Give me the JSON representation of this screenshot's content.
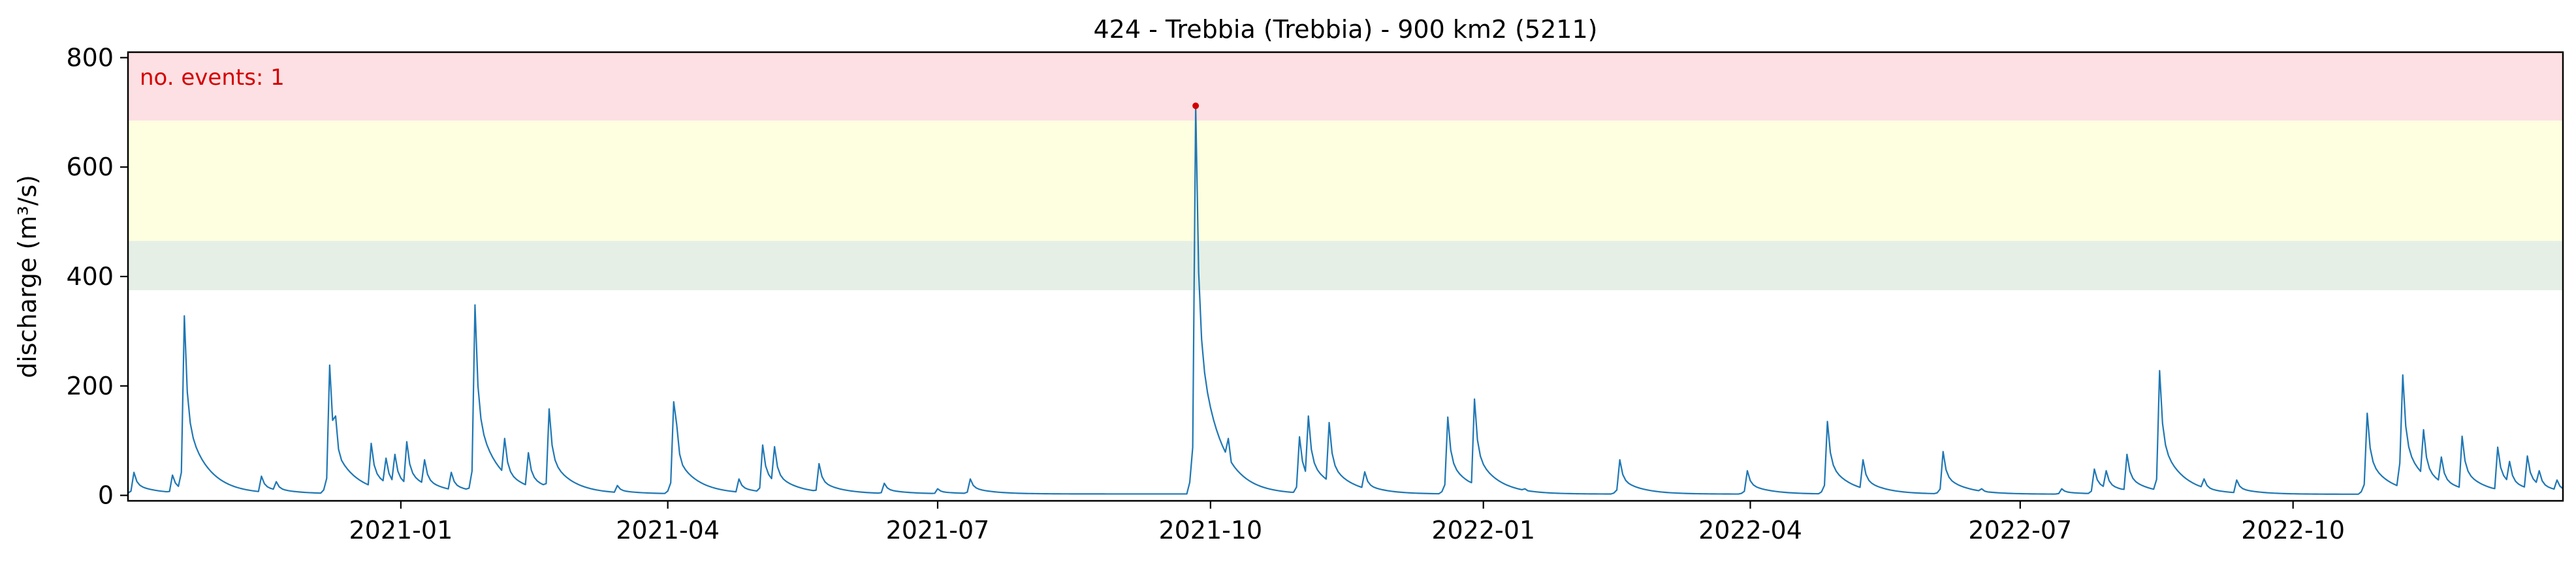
{
  "chart_data": {
    "type": "line",
    "title": "424 - Trebbia (Trebbia) - 900 km2 (5211)",
    "xlabel": "",
    "ylabel": "discharge (m³/s)",
    "xlim": [
      "2020-10-01",
      "2022-12-31"
    ],
    "ylim": [
      -10,
      810
    ],
    "yticks": [
      0,
      200,
      400,
      600,
      800
    ],
    "xticks": [
      "2021-01-01",
      "2021-04-01",
      "2021-07-01",
      "2021-10-01",
      "2022-01-01",
      "2022-04-01",
      "2022-07-01",
      "2022-10-01"
    ],
    "xtick_labels": [
      "2021-01",
      "2021-04",
      "2021-07",
      "2021-10",
      "2022-01",
      "2022-04",
      "2022-07",
      "2022-10"
    ],
    "threshold_bands": [
      {
        "from": 375,
        "to": 465,
        "color": "#e5efe5"
      },
      {
        "from": 465,
        "to": 685,
        "color": "#fefee0"
      },
      {
        "from": 685,
        "to": 810,
        "color": "#fde0e3"
      }
    ],
    "annotation": {
      "text": "no. events: 1",
      "color": "#d40000"
    },
    "event": {
      "x": "2021-09-26",
      "y": 712,
      "color": "#d40000"
    },
    "line_color": "#1f77b4",
    "grid": false,
    "series": [
      {
        "baseline": [
          3,
          2
        ],
        "peaks": [
          {
            "x": "2020-10-03",
            "y": 42
          },
          {
            "x": "2020-10-16",
            "y": 37
          },
          {
            "x": "2020-10-20",
            "y": 328
          },
          {
            "x": "2020-11-15",
            "y": 35
          },
          {
            "x": "2020-11-20",
            "y": 25
          },
          {
            "x": "2020-12-08",
            "y": 238
          },
          {
            "x": "2020-12-10",
            "y": 145
          },
          {
            "x": "2020-12-22",
            "y": 95
          },
          {
            "x": "2020-12-27",
            "y": 68
          },
          {
            "x": "2020-12-30",
            "y": 75
          },
          {
            "x": "2021-01-03",
            "y": 98
          },
          {
            "x": "2021-01-09",
            "y": 65
          },
          {
            "x": "2021-01-18",
            "y": 42
          },
          {
            "x": "2021-01-26",
            "y": 348
          },
          {
            "x": "2021-02-05",
            "y": 104
          },
          {
            "x": "2021-02-13",
            "y": 78
          },
          {
            "x": "2021-02-20",
            "y": 158
          },
          {
            "x": "2021-03-15",
            "y": 18
          },
          {
            "x": "2021-04-03",
            "y": 171
          },
          {
            "x": "2021-04-04",
            "y": 130
          },
          {
            "x": "2021-04-25",
            "y": 30
          },
          {
            "x": "2021-05-03",
            "y": 92
          },
          {
            "x": "2021-05-07",
            "y": 89
          },
          {
            "x": "2021-05-22",
            "y": 58
          },
          {
            "x": "2021-06-13",
            "y": 22
          },
          {
            "x": "2021-07-01",
            "y": 12
          },
          {
            "x": "2021-07-12",
            "y": 30
          },
          {
            "x": "2021-09-26",
            "y": 712
          },
          {
            "x": "2021-10-07",
            "y": 104
          },
          {
            "x": "2021-10-31",
            "y": 107
          },
          {
            "x": "2021-11-03",
            "y": 145
          },
          {
            "x": "2021-11-10",
            "y": 133
          },
          {
            "x": "2021-11-11",
            "y": 72
          },
          {
            "x": "2021-11-22",
            "y": 43
          },
          {
            "x": "2021-12-20",
            "y": 143
          },
          {
            "x": "2021-12-29",
            "y": 176
          },
          {
            "x": "2022-01-15",
            "y": 12
          },
          {
            "x": "2022-02-16",
            "y": 65
          },
          {
            "x": "2022-03-31",
            "y": 45
          },
          {
            "x": "2022-04-27",
            "y": 135
          },
          {
            "x": "2022-05-09",
            "y": 65
          },
          {
            "x": "2022-06-05",
            "y": 80
          },
          {
            "x": "2022-06-18",
            "y": 12
          },
          {
            "x": "2022-07-15",
            "y": 12
          },
          {
            "x": "2022-07-26",
            "y": 48
          },
          {
            "x": "2022-07-30",
            "y": 45
          },
          {
            "x": "2022-08-06",
            "y": 75
          },
          {
            "x": "2022-08-17",
            "y": 228
          },
          {
            "x": "2022-09-01",
            "y": 30
          },
          {
            "x": "2022-09-12",
            "y": 28
          },
          {
            "x": "2022-10-26",
            "y": 150
          },
          {
            "x": "2022-11-06",
            "y": 59
          },
          {
            "x": "2022-11-07",
            "y": 220
          },
          {
            "x": "2022-11-14",
            "y": 120
          },
          {
            "x": "2022-11-20",
            "y": 70
          },
          {
            "x": "2022-11-27",
            "y": 108
          },
          {
            "x": "2022-12-09",
            "y": 88
          },
          {
            "x": "2022-12-13",
            "y": 62
          },
          {
            "x": "2022-12-19",
            "y": 72
          },
          {
            "x": "2022-12-23",
            "y": 45
          },
          {
            "x": "2022-12-29",
            "y": 28
          }
        ]
      }
    ]
  }
}
